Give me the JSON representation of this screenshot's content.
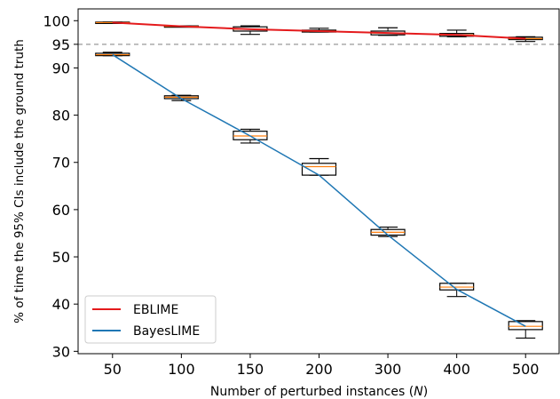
{
  "chart_data": {
    "type": "box",
    "xlabel": "Number of perturbed instances (",
    "xlabel_var": "N",
    "xlabel_end": ")",
    "ylabel": "% of time the 95% CIs include the ground truth",
    "categories": [
      "50",
      "100",
      "150",
      "200",
      "300",
      "400",
      "500"
    ],
    "yticks": [
      30,
      40,
      50,
      60,
      70,
      80,
      90,
      95,
      100
    ],
    "ylim": [
      29.5,
      102.5
    ],
    "reference_line": {
      "y": 95,
      "style": "dashed",
      "color": "#aaaaaa"
    },
    "series": [
      {
        "name": "EBLIME",
        "color": "#e41a1c",
        "line_values": [
          99.6,
          98.8,
          98.2,
          97.8,
          97.4,
          97.0,
          96.2
        ],
        "boxes": [
          {
            "whislo": 99.5,
            "q1": 99.5,
            "med": 99.6,
            "q3": 99.7,
            "whishi": 99.7
          },
          {
            "whislo": 98.7,
            "q1": 98.7,
            "med": 98.8,
            "q3": 98.9,
            "whishi": 98.9
          },
          {
            "whislo": 97.1,
            "q1": 97.8,
            "med": 98.2,
            "q3": 98.7,
            "whishi": 98.9
          },
          {
            "whislo": 97.6,
            "q1": 97.6,
            "med": 97.8,
            "q3": 98.0,
            "whishi": 98.4
          },
          {
            "whislo": 96.9,
            "q1": 97.0,
            "med": 97.4,
            "q3": 97.8,
            "whishi": 98.5
          },
          {
            "whislo": 96.6,
            "q1": 96.7,
            "med": 97.0,
            "q3": 97.3,
            "whishi": 98.0
          },
          {
            "whislo": 95.6,
            "q1": 96.0,
            "med": 96.2,
            "q3": 96.5,
            "whishi": 96.6
          }
        ]
      },
      {
        "name": "BayesLIME",
        "color": "#1f77b4",
        "line_values": [
          92.8,
          83.5,
          75.6,
          67.3,
          54.6,
          43.1,
          35.3
        ],
        "boxes": [
          {
            "whislo": 92.6,
            "q1": 92.6,
            "med": 92.8,
            "q3": 93.1,
            "whishi": 93.3
          },
          {
            "whislo": 83.1,
            "q1": 83.5,
            "med": 83.8,
            "q3": 84.1,
            "whishi": 84.2
          },
          {
            "whislo": 74.1,
            "q1": 74.8,
            "med": 75.6,
            "q3": 76.6,
            "whishi": 77.0
          },
          {
            "whislo": 67.3,
            "q1": 67.3,
            "med": 69.1,
            "q3": 69.8,
            "whishi": 70.8
          },
          {
            "whislo": 54.3,
            "q1": 54.6,
            "med": 55.2,
            "q3": 55.8,
            "whishi": 56.3
          },
          {
            "whislo": 41.6,
            "q1": 43.0,
            "med": 43.6,
            "q3": 44.4,
            "whishi": 44.4
          },
          {
            "whislo": 32.8,
            "q1": 34.6,
            "med": 35.3,
            "q3": 36.3,
            "whishi": 36.5
          }
        ]
      }
    ],
    "legend": {
      "position": "lower-left",
      "entries": [
        "EBLIME",
        "BayesLIME"
      ]
    },
    "median_color": "#ff7f0e",
    "grid": false
  }
}
